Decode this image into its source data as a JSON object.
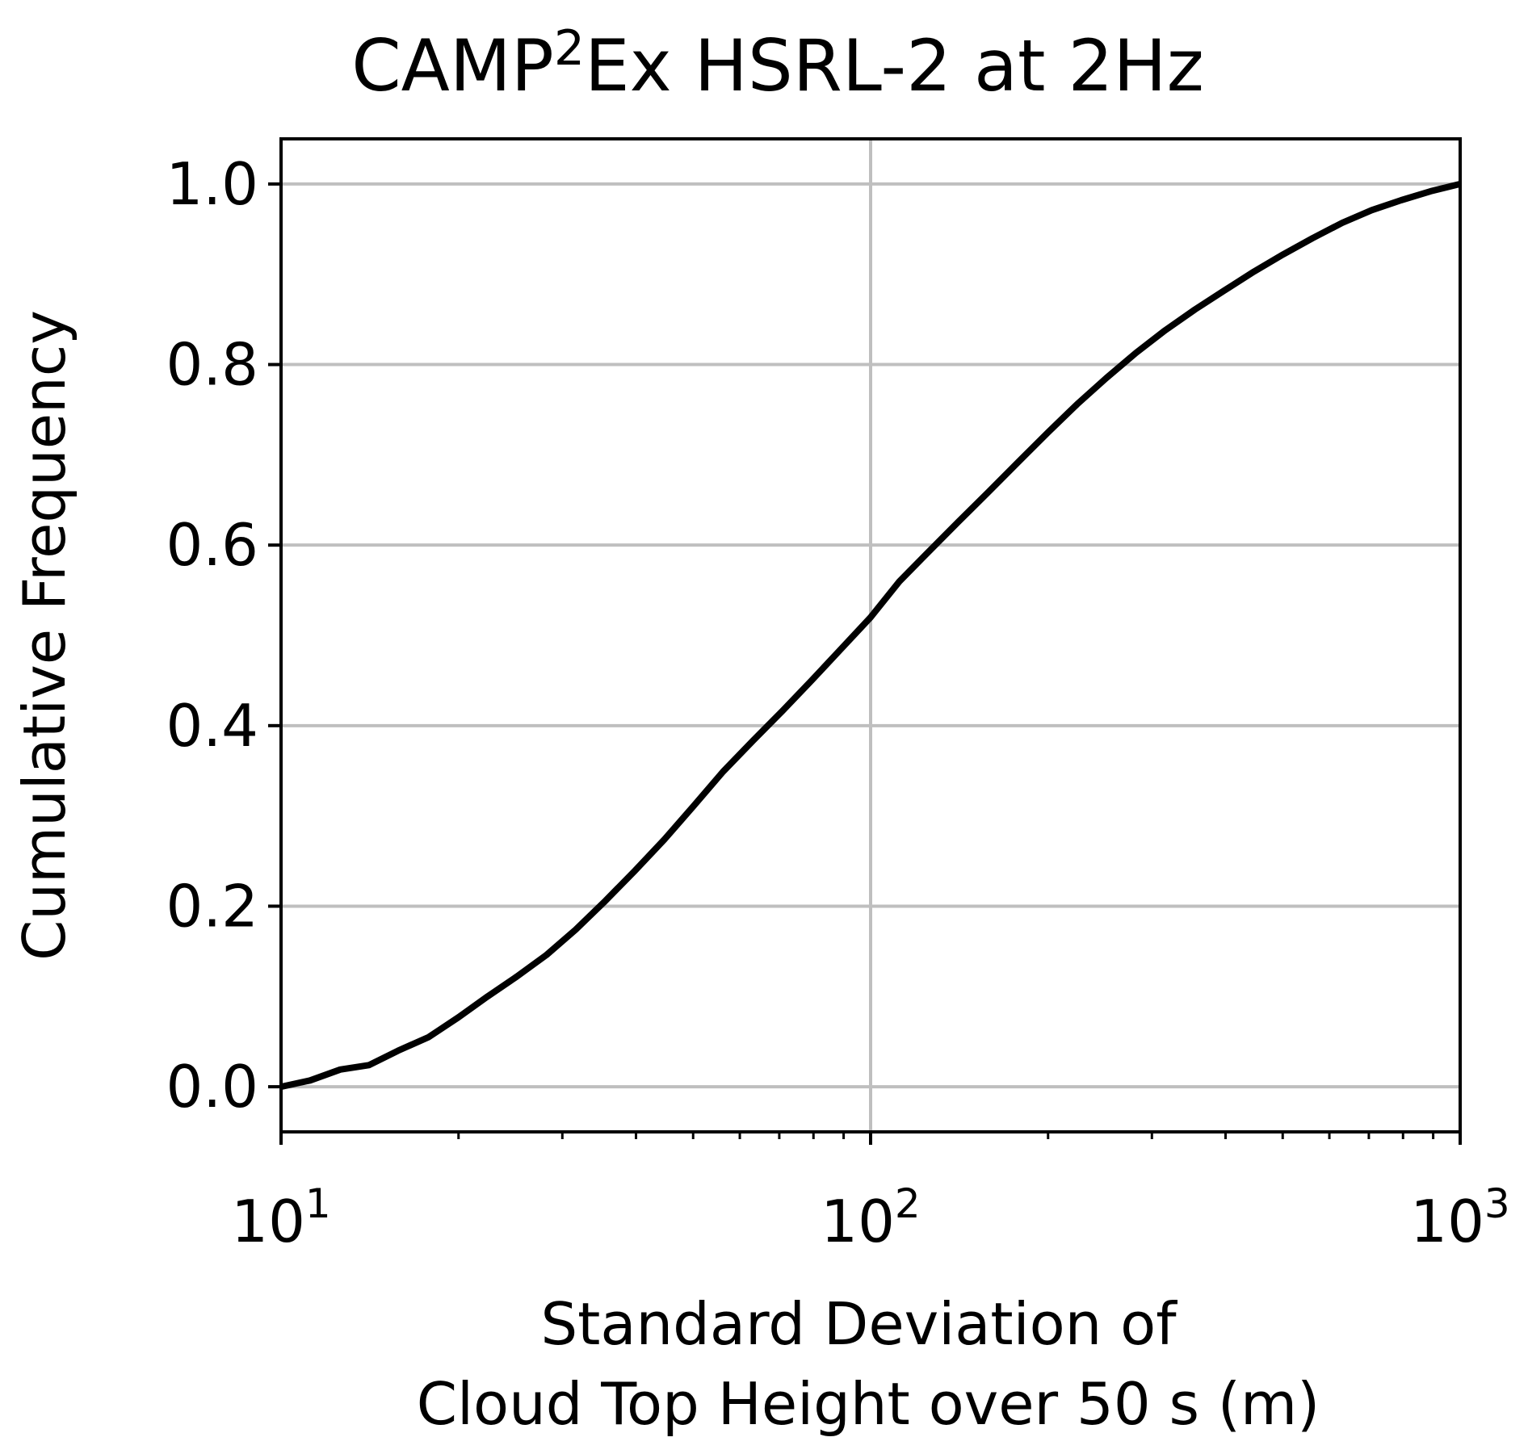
{
  "chart_data": {
    "type": "line",
    "title": "CAMP",
    "title_superscript": "2",
    "title_rest": "Ex HSRL-2 at 2Hz",
    "xlabel_line1": "Standard Deviation of",
    "xlabel_line2": "Cloud Top Height over 50 s (m)",
    "ylabel": "Cumulative Frequency",
    "x_scale": "log",
    "xlim": [
      10,
      1000
    ],
    "ylim": [
      -0.05,
      1.05
    ],
    "grid": true,
    "x_ticks": [
      {
        "value": 10,
        "base": "10",
        "exp": "1"
      },
      {
        "value": 100,
        "base": "10",
        "exp": "2"
      },
      {
        "value": 1000,
        "base": "10",
        "exp": "3"
      }
    ],
    "y_ticks": [
      {
        "value": 0.0,
        "label": "0.0"
      },
      {
        "value": 0.2,
        "label": "0.2"
      },
      {
        "value": 0.4,
        "label": "0.4"
      },
      {
        "value": 0.6,
        "label": "0.6"
      },
      {
        "value": 0.8,
        "label": "0.8"
      },
      {
        "value": 1.0,
        "label": "1.0"
      }
    ],
    "line_color": "#000000",
    "grid_color": "#bfbfbf",
    "series": [
      {
        "x": [
          10,
          11.2,
          12.6,
          14.1,
          15.8,
          17.8,
          20,
          22.4,
          25.1,
          28.2,
          31.6,
          35.5,
          39.8,
          44.7,
          50.1,
          56.2,
          63.1,
          70.8,
          79.4,
          89.1,
          100,
          112,
          126,
          141,
          158,
          178,
          200,
          224,
          251,
          282,
          316,
          355,
          398,
          447,
          501,
          562,
          631,
          708,
          794,
          891,
          1000
        ],
        "y": [
          0.0,
          0.007,
          0.019,
          0.024,
          0.04,
          0.055,
          0.077,
          0.1,
          0.122,
          0.146,
          0.174,
          0.206,
          0.239,
          0.274,
          0.311,
          0.349,
          0.383,
          0.416,
          0.45,
          0.485,
          0.52,
          0.56,
          0.594,
          0.626,
          0.658,
          0.692,
          0.725,
          0.756,
          0.785,
          0.813,
          0.838,
          0.861,
          0.882,
          0.903,
          0.922,
          0.94,
          0.957,
          0.971,
          0.982,
          0.992,
          1.0
        ]
      }
    ]
  }
}
